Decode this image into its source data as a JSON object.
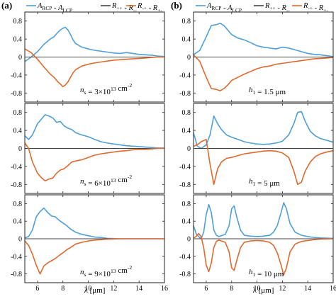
{
  "figure": {
    "panel_labels": [
      "(a)",
      "(b)"
    ],
    "x_axis_label": "λ [μm]",
    "colors": {
      "blue": "#4f9fd8",
      "orange": "#e2692e",
      "gray": "#444444",
      "frame": "#222222"
    }
  },
  "legend": [
    {
      "label": "A_RCP - A_LCP",
      "color": "#4f9fd8"
    },
    {
      "label": "R_++ - R_--",
      "color": "#444444"
    },
    {
      "label": "R_-+ - R_+-",
      "color": "#e2692e"
    }
  ],
  "chart_data": [
    {
      "type": "line",
      "panel": "(a)",
      "row": 1,
      "annotation": "n_s = 3×10^13 cm^-2",
      "xlim": [
        5,
        16
      ],
      "ylim": [
        -1,
        1
      ],
      "xticks": [
        6,
        8,
        10,
        12,
        14,
        16
      ],
      "yticks": [
        0.8,
        0.4,
        0,
        -0.4,
        -0.8
      ],
      "series": [
        {
          "color": "#4f9fd8",
          "x": [
            5,
            5.5,
            6,
            6.5,
            7,
            7.3,
            7.6,
            7.8,
            8,
            8.2,
            8.4,
            8.6,
            8.8,
            9,
            9.5,
            10,
            10.5,
            11,
            11.5,
            12,
            12.5,
            13,
            13.5,
            14,
            14.5,
            15,
            15.5,
            16
          ],
          "y": [
            -0.1,
            0.0,
            0.12,
            0.28,
            0.4,
            0.45,
            0.55,
            0.6,
            0.64,
            0.66,
            0.6,
            0.5,
            0.38,
            0.3,
            0.22,
            0.18,
            0.15,
            0.13,
            0.11,
            0.09,
            0.08,
            0.1,
            0.08,
            0.06,
            0.05,
            0.04,
            0.02,
            0.01
          ]
        },
        {
          "color": "#444444",
          "x": [
            5,
            16
          ],
          "y": [
            0,
            0
          ]
        },
        {
          "color": "#e2692e",
          "x": [
            5,
            5.5,
            6,
            6.5,
            7,
            7.3,
            7.6,
            7.8,
            8,
            8.2,
            8.4,
            8.6,
            8.8,
            9,
            9.5,
            10,
            10.5,
            11,
            11.5,
            12,
            12.5,
            13,
            13.5,
            14,
            14.5,
            15,
            15.5,
            16
          ],
          "y": [
            0.18,
            0.1,
            -0.05,
            -0.22,
            -0.38,
            -0.45,
            -0.55,
            -0.6,
            -0.66,
            -0.62,
            -0.55,
            -0.45,
            -0.35,
            -0.28,
            -0.2,
            -0.16,
            -0.13,
            -0.11,
            -0.09,
            -0.07,
            -0.06,
            -0.05,
            -0.04,
            -0.03,
            -0.02,
            -0.01,
            0,
            0
          ]
        }
      ]
    },
    {
      "type": "line",
      "panel": "(a)",
      "row": 2,
      "annotation": "n_s = 6×10^13 cm^-2",
      "xlim": [
        5,
        16
      ],
      "ylim": [
        -1,
        1
      ],
      "xticks": [
        6,
        8,
        10,
        12,
        14,
        16
      ],
      "yticks": [
        0.8,
        0.4,
        0,
        -0.4,
        -0.8
      ],
      "series": [
        {
          "color": "#4f9fd8",
          "x": [
            5,
            5.3,
            5.6,
            6,
            6.3,
            6.6,
            6.9,
            7.2,
            7.5,
            7.8,
            8.1,
            8.4,
            8.7,
            9,
            9.5,
            10,
            10.5,
            11,
            11.5,
            12,
            12.5,
            13,
            13.5,
            14,
            14.5,
            15,
            15.5,
            16
          ],
          "y": [
            0.28,
            0.2,
            0.3,
            0.55,
            0.65,
            0.75,
            0.72,
            0.68,
            0.58,
            0.6,
            0.5,
            0.45,
            0.42,
            0.35,
            0.3,
            0.26,
            0.2,
            0.15,
            0.12,
            0.1,
            0.08,
            0.06,
            0.05,
            0.04,
            0.03,
            0.02,
            0.01,
            0.01
          ]
        },
        {
          "color": "#444444",
          "x": [
            5,
            16
          ],
          "y": [
            0,
            0
          ]
        },
        {
          "color": "#e2692e",
          "x": [
            5,
            5.3,
            5.6,
            6,
            6.3,
            6.6,
            6.9,
            7.2,
            7.5,
            7.8,
            8.1,
            8.4,
            8.7,
            9,
            9.5,
            10,
            10.5,
            11,
            11.5,
            12,
            12.5,
            13,
            13.5,
            14,
            14.5,
            15,
            15.5,
            16
          ],
          "y": [
            0.12,
            0.0,
            -0.3,
            -0.55,
            -0.65,
            -0.72,
            -0.68,
            -0.66,
            -0.55,
            -0.48,
            -0.45,
            -0.38,
            -0.3,
            -0.28,
            -0.25,
            -0.2,
            -0.15,
            -0.12,
            -0.1,
            -0.08,
            -0.06,
            -0.05,
            -0.03,
            -0.02,
            -0.02,
            -0.01,
            0,
            0
          ]
        }
      ]
    },
    {
      "type": "line",
      "panel": "(a)",
      "row": 3,
      "annotation": "n_s = 9×10^13 cm^-2",
      "xlim": [
        5,
        16
      ],
      "ylim": [
        -1,
        1
      ],
      "xticks": [
        6,
        8,
        10,
        12,
        14,
        16
      ],
      "yticks": [
        0.8,
        0.4,
        0,
        -0.4,
        -0.8
      ],
      "series": [
        {
          "color": "#4f9fd8",
          "x": [
            5,
            5.3,
            5.6,
            5.9,
            6.2,
            6.5,
            6.8,
            7.1,
            7.4,
            7.7,
            8,
            8.3,
            8.6,
            9,
            9.5,
            10,
            10.5,
            11,
            11.5,
            12,
            12.5,
            13,
            14,
            15,
            16
          ],
          "y": [
            0.02,
            0.05,
            0.2,
            0.5,
            0.62,
            0.7,
            0.6,
            0.52,
            0.5,
            0.42,
            0.36,
            0.3,
            0.22,
            0.15,
            0.1,
            0.07,
            0.04,
            0.03,
            0.01,
            0.005,
            0.0,
            0.0,
            0.0,
            0.0,
            0.0
          ]
        },
        {
          "color": "#444444",
          "x": [
            5,
            16
          ],
          "y": [
            0,
            0
          ]
        },
        {
          "color": "#e2692e",
          "x": [
            5,
            5.3,
            5.6,
            5.9,
            6.2,
            6.5,
            6.8,
            7.1,
            7.4,
            7.7,
            8,
            8.3,
            8.6,
            9,
            9.5,
            10,
            10.5,
            11,
            11.5,
            12,
            12.5,
            13,
            14,
            15,
            16
          ],
          "y": [
            -0.05,
            -0.15,
            -0.35,
            -0.6,
            -0.8,
            -0.62,
            -0.55,
            -0.5,
            -0.45,
            -0.38,
            -0.32,
            -0.25,
            -0.2,
            -0.12,
            -0.08,
            -0.05,
            -0.03,
            -0.02,
            -0.01,
            -0.005,
            0.0,
            0.0,
            0.0,
            0.0,
            0.0
          ]
        }
      ]
    },
    {
      "type": "line",
      "panel": "(b)",
      "row": 1,
      "annotation": "h_1 = 1.5 μm",
      "xlim": [
        5,
        16
      ],
      "ylim": [
        -1,
        1
      ],
      "xticks": [
        6,
        8,
        10,
        12,
        14,
        16
      ],
      "yticks": [
        0.8,
        0.4,
        0,
        -0.4,
        -0.8
      ],
      "series": [
        {
          "color": "#4f9fd8",
          "x": [
            5,
            5.5,
            6,
            6.4,
            6.8,
            7.1,
            7.4,
            7.7,
            8,
            8.5,
            9,
            9.5,
            10,
            10.5,
            11,
            11.5,
            12,
            12.5,
            13,
            13.5,
            14,
            14.5,
            15,
            15.5,
            16
          ],
          "y": [
            0.05,
            0.15,
            0.45,
            0.7,
            0.72,
            0.75,
            0.7,
            0.6,
            0.5,
            0.42,
            0.38,
            0.32,
            0.25,
            0.22,
            0.2,
            0.18,
            0.22,
            0.2,
            0.16,
            0.12,
            0.08,
            0.06,
            0.05,
            0.03,
            0.01
          ]
        },
        {
          "color": "#444444",
          "x": [
            5,
            16
          ],
          "y": [
            0,
            0
          ]
        },
        {
          "color": "#e2692e",
          "x": [
            5,
            5.5,
            6,
            6.4,
            6.8,
            7.1,
            7.4,
            7.7,
            8,
            8.5,
            9,
            9.5,
            10,
            10.5,
            11,
            11.5,
            12,
            12.5,
            13,
            13.5,
            14,
            14.5,
            15,
            15.5,
            16
          ],
          "y": [
            0.05,
            -0.1,
            -0.45,
            -0.7,
            -0.72,
            -0.75,
            -0.7,
            -0.62,
            -0.52,
            -0.45,
            -0.38,
            -0.32,
            -0.26,
            -0.22,
            -0.2,
            -0.16,
            -0.14,
            -0.12,
            -0.1,
            -0.08,
            -0.06,
            -0.04,
            -0.03,
            -0.02,
            -0.01
          ]
        }
      ]
    },
    {
      "type": "line",
      "panel": "(b)",
      "row": 2,
      "annotation": "h_1 = 5 μm",
      "xlim": [
        5,
        16
      ],
      "ylim": [
        -1,
        1
      ],
      "xticks": [
        6,
        8,
        10,
        12,
        14,
        16
      ],
      "yticks": [
        0.8,
        0.4,
        0,
        -0.4,
        -0.8
      ],
      "series": [
        {
          "color": "#4f9fd8",
          "x": [
            5,
            5.3,
            5.6,
            6,
            6.3,
            6.6,
            6.9,
            7.2,
            7.6,
            8,
            8.5,
            9,
            9.5,
            10,
            10.5,
            11,
            11.5,
            12,
            12.5,
            12.9,
            13.2,
            13.5,
            13.8,
            14.2,
            14.6,
            15,
            15.5,
            16
          ],
          "y": [
            0.35,
            0.05,
            0.0,
            0.08,
            0.3,
            0.72,
            0.55,
            0.42,
            0.3,
            0.25,
            0.2,
            0.15,
            0.12,
            0.1,
            0.09,
            0.1,
            0.12,
            0.16,
            0.3,
            0.55,
            0.8,
            0.82,
            0.6,
            0.38,
            0.28,
            0.22,
            0.18,
            0.14
          ]
        },
        {
          "color": "#444444",
          "x": [
            5,
            16
          ],
          "y": [
            0,
            0
          ]
        },
        {
          "color": "#e2692e",
          "x": [
            5,
            5.3,
            5.6,
            6,
            6.3,
            6.6,
            6.9,
            7.2,
            7.6,
            8,
            8.5,
            9,
            9.5,
            10,
            10.5,
            11,
            11.5,
            12,
            12.5,
            12.9,
            13.2,
            13.5,
            13.8,
            14.2,
            14.6,
            15,
            15.5,
            16
          ],
          "y": [
            0.05,
            0.08,
            0.15,
            0.2,
            -0.35,
            -0.8,
            -0.45,
            -0.3,
            -0.22,
            -0.2,
            -0.16,
            -0.12,
            -0.1,
            -0.08,
            -0.06,
            -0.05,
            -0.06,
            -0.1,
            -0.2,
            -0.5,
            -0.8,
            -0.75,
            -0.5,
            -0.3,
            -0.18,
            -0.12,
            -0.08,
            -0.05
          ]
        }
      ]
    },
    {
      "type": "line",
      "panel": "(b)",
      "row": 3,
      "annotation": "h_1 = 10 μm",
      "xlim": [
        5,
        16
      ],
      "ylim": [
        -1,
        1
      ],
      "xticks": [
        6,
        8,
        10,
        12,
        14,
        16
      ],
      "yticks": [
        0.8,
        0.4,
        0,
        -0.4,
        -0.8
      ],
      "series": [
        {
          "color": "#4f9fd8",
          "x": [
            5,
            5.2,
            5.4,
            5.6,
            5.8,
            6,
            6.2,
            6.4,
            6.6,
            6.8,
            7,
            7.5,
            7.8,
            8,
            8.2,
            8.4,
            8.7,
            9,
            9.5,
            10,
            10.5,
            11,
            11.3,
            11.6,
            11.9,
            12.1,
            12.3,
            12.6,
            13,
            13.5,
            14,
            14.5,
            15,
            16
          ],
          "y": [
            0.3,
            0.12,
            0.05,
            0.0,
            0.15,
            0.55,
            0.78,
            0.6,
            0.2,
            0.08,
            0.05,
            0.1,
            0.3,
            0.68,
            0.75,
            0.5,
            0.2,
            0.08,
            0.06,
            0.05,
            0.06,
            0.08,
            0.15,
            0.3,
            0.6,
            0.82,
            0.7,
            0.35,
            0.15,
            0.08,
            0.05,
            0.03,
            0.02,
            0.01
          ]
        },
        {
          "color": "#444444",
          "x": [
            5,
            16
          ],
          "y": [
            0,
            0
          ]
        },
        {
          "color": "#e2692e",
          "x": [
            5,
            5.2,
            5.4,
            5.6,
            5.8,
            6,
            6.2,
            6.4,
            6.6,
            6.8,
            7,
            7.5,
            7.8,
            8,
            8.2,
            8.4,
            8.7,
            9,
            9.5,
            10,
            10.5,
            11,
            11.3,
            11.6,
            11.9,
            12.1,
            12.3,
            12.6,
            13,
            13.5,
            14,
            14.5,
            15,
            16
          ],
          "y": [
            0.02,
            0.05,
            0.12,
            0.05,
            -0.2,
            -0.6,
            -0.75,
            -0.55,
            -0.2,
            -0.06,
            -0.03,
            -0.08,
            -0.3,
            -0.66,
            -0.72,
            -0.5,
            -0.2,
            -0.08,
            -0.05,
            -0.04,
            -0.05,
            -0.08,
            -0.15,
            -0.32,
            -0.6,
            -0.82,
            -0.68,
            -0.3,
            -0.12,
            -0.06,
            -0.04,
            -0.02,
            -0.01,
            0
          ]
        }
      ]
    }
  ]
}
